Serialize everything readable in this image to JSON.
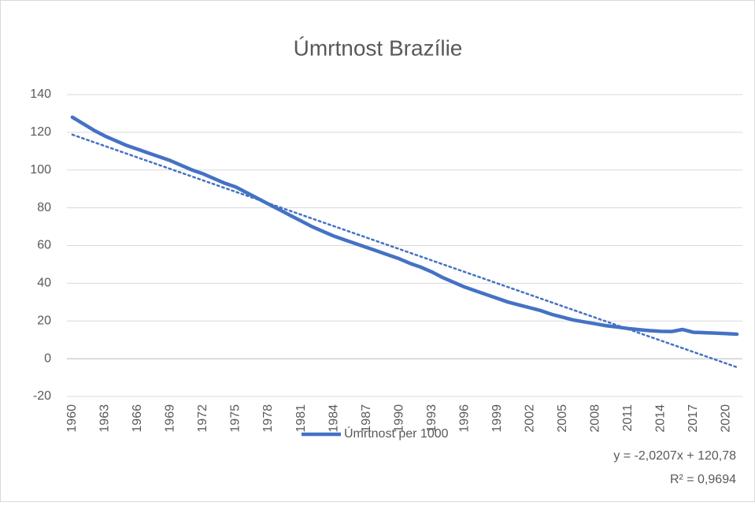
{
  "chart_data": {
    "type": "line",
    "title": "Úmrtnost Brazílie",
    "categories": [
      "1960",
      null,
      null,
      "1963",
      null,
      null,
      "1966",
      null,
      null,
      "1969",
      null,
      null,
      "1972",
      null,
      null,
      "1975",
      null,
      null,
      "1978",
      null,
      null,
      "1981",
      null,
      null,
      "1984",
      null,
      null,
      "1987",
      null,
      null,
      "1990",
      null,
      null,
      "1993",
      null,
      null,
      "1996",
      null,
      null,
      "1999",
      null,
      null,
      "2002",
      null,
      null,
      "2005",
      null,
      null,
      "2008",
      null,
      null,
      "2011",
      null,
      null,
      "2014",
      null,
      null,
      "2017",
      null,
      null,
      "2020",
      null
    ],
    "series": [
      {
        "name": "Úmrtnost per 1000",
        "color": "#4472c4",
        "values": [
          128,
          124.5,
          121,
          118,
          115.5,
          113,
          111,
          109,
          107,
          105,
          102.5,
          100,
          98,
          95.5,
          93,
          91,
          88,
          85,
          82,
          79,
          76,
          73,
          70,
          67.5,
          65,
          63,
          61,
          59,
          57,
          55,
          53,
          50.5,
          48.5,
          46,
          43,
          40.5,
          38,
          36,
          34,
          32,
          30,
          28.5,
          27,
          25.5,
          23.5,
          22,
          20.5,
          19.5,
          18.5,
          17.5,
          16.8,
          16,
          15.4,
          14.9,
          14.5,
          14.4,
          15.5,
          14,
          13.8,
          13.6,
          13.3,
          13
        ]
      }
    ],
    "trendline": {
      "slope": -2.0207,
      "intercept": 120.78,
      "equation": "y = -2,0207x + 120,78",
      "r2": "R² = 0,9694"
    },
    "ylim": [
      -20,
      140
    ],
    "yticks": [
      -20,
      0,
      20,
      40,
      60,
      80,
      100,
      120,
      140
    ],
    "grid": true,
    "legend": "bottom"
  }
}
